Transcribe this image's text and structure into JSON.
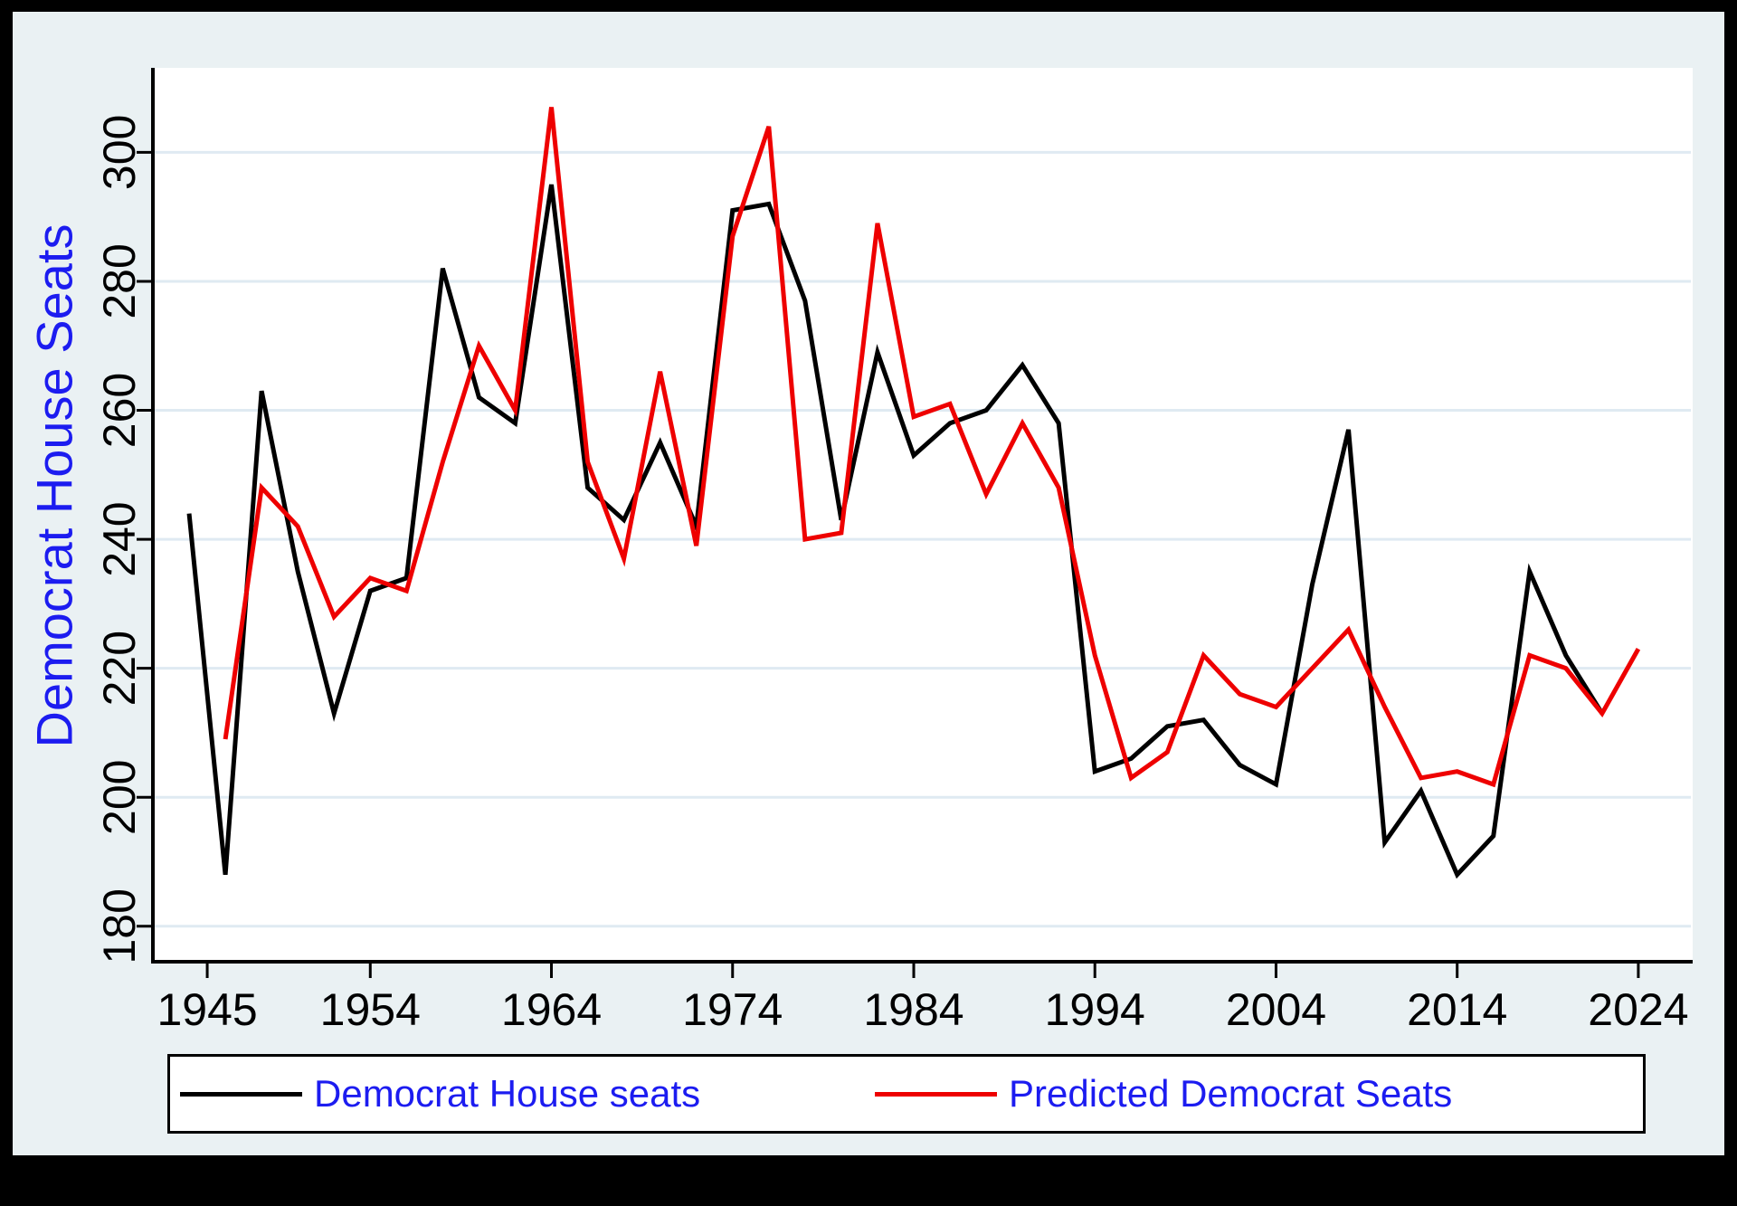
{
  "colors": {
    "page_border": "#000000",
    "canvas_background": "#eaf1f3",
    "plot_background": "#ffffff",
    "gridline": "#dfeaf2",
    "axis": "#000000",
    "tick_label": "#000000",
    "title_text": "#1c1cf0",
    "actual_line": "#000000",
    "predicted_line": "#ee0000"
  },
  "chart_data": {
    "type": "line",
    "title": "",
    "xlabel": "",
    "ylabel": "Democrat House Seats",
    "grid": true,
    "legend_position": "bottom",
    "x_ticks": [
      1945,
      1954,
      1964,
      1974,
      1984,
      1994,
      2004,
      2014,
      2024
    ],
    "y_ticks": [
      180,
      200,
      220,
      240,
      260,
      280,
      300
    ],
    "x_domain": [
      1942,
      2027
    ],
    "y_domain": [
      174.5,
      313.1
    ],
    "series": [
      {
        "name": "Democrat House seats",
        "color": "#000000",
        "points": [
          [
            1944,
            244
          ],
          [
            1946,
            188
          ],
          [
            1948,
            263
          ],
          [
            1950,
            235
          ],
          [
            1952,
            213
          ],
          [
            1954,
            232
          ],
          [
            1956,
            234
          ],
          [
            1958,
            282
          ],
          [
            1960,
            262
          ],
          [
            1962,
            258
          ],
          [
            1964,
            295
          ],
          [
            1966,
            248
          ],
          [
            1968,
            243
          ],
          [
            1970,
            255
          ],
          [
            1972,
            242
          ],
          [
            1974,
            291
          ],
          [
            1976,
            292
          ],
          [
            1978,
            277
          ],
          [
            1980,
            243
          ],
          [
            1982,
            269
          ],
          [
            1984,
            253
          ],
          [
            1986,
            258
          ],
          [
            1988,
            260
          ],
          [
            1990,
            267
          ],
          [
            1992,
            258
          ],
          [
            1994,
            204
          ],
          [
            1996,
            206
          ],
          [
            1998,
            211
          ],
          [
            2000,
            212
          ],
          [
            2002,
            205
          ],
          [
            2004,
            202
          ],
          [
            2006,
            233
          ],
          [
            2008,
            257
          ],
          [
            2010,
            193
          ],
          [
            2012,
            201
          ],
          [
            2014,
            188
          ],
          [
            2016,
            194
          ],
          [
            2018,
            235
          ],
          [
            2020,
            222
          ],
          [
            2022,
            213
          ]
        ]
      },
      {
        "name": "Predicted Democrat Seats",
        "color": "#ee0000",
        "points": [
          [
            1946,
            209
          ],
          [
            1948,
            248
          ],
          [
            1950,
            242
          ],
          [
            1952,
            228
          ],
          [
            1954,
            234
          ],
          [
            1956,
            232
          ],
          [
            1958,
            252
          ],
          [
            1960,
            270
          ],
          [
            1962,
            260
          ],
          [
            1964,
            307
          ],
          [
            1966,
            252
          ],
          [
            1968,
            237
          ],
          [
            1970,
            266
          ],
          [
            1972,
            239
          ],
          [
            1974,
            287
          ],
          [
            1976,
            304
          ],
          [
            1978,
            240
          ],
          [
            1980,
            241
          ],
          [
            1982,
            289
          ],
          [
            1984,
            259
          ],
          [
            1986,
            261
          ],
          [
            1988,
            247
          ],
          [
            1990,
            258
          ],
          [
            1992,
            248
          ],
          [
            1994,
            222
          ],
          [
            1996,
            203
          ],
          [
            1998,
            207
          ],
          [
            2000,
            222
          ],
          [
            2002,
            216
          ],
          [
            2004,
            214
          ],
          [
            2006,
            220
          ],
          [
            2008,
            226
          ],
          [
            2010,
            214
          ],
          [
            2012,
            203
          ],
          [
            2014,
            204
          ],
          [
            2016,
            202
          ],
          [
            2018,
            222
          ],
          [
            2020,
            220
          ],
          [
            2022,
            213
          ],
          [
            2024,
            223
          ]
        ]
      }
    ]
  },
  "legend": {
    "items": [
      {
        "label": "Democrat House seats",
        "color": "#000000"
      },
      {
        "label": "Predicted Democrat Seats",
        "color": "#ee0000"
      }
    ]
  }
}
